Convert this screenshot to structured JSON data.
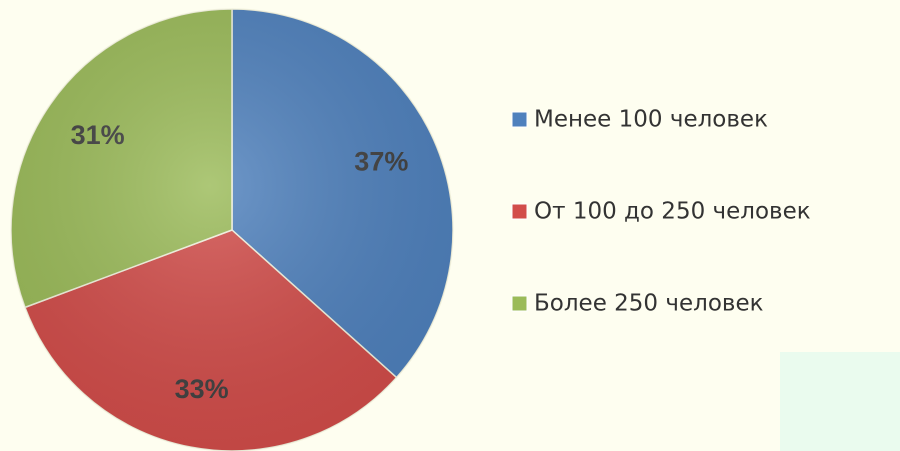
{
  "chart_data": {
    "type": "pie",
    "categories": [
      "Менее 100 человек",
      "От 100 до 250 человек",
      "Более 250 человек"
    ],
    "values": [
      37,
      33,
      31
    ],
    "value_labels": [
      "37%",
      "33%",
      "31%"
    ],
    "colors": [
      "#4f81bd",
      "#d24d4a",
      "#9bbb59"
    ],
    "legend": "right"
  }
}
